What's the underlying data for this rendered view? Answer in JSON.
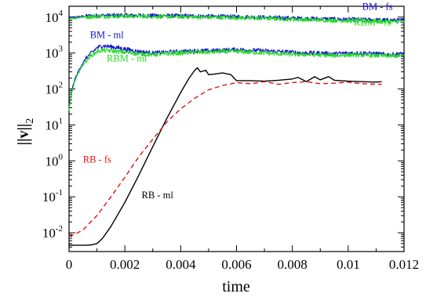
{
  "chart_data": {
    "type": "line",
    "title": "",
    "xlabel": "time",
    "ylabel": "||v||",
    "ylabel_subscript": "2",
    "xlim": [
      0,
      0.012
    ],
    "ylim": [
      0.003,
      20000
    ],
    "y_scale": "log",
    "grid": false,
    "legend": "none",
    "x_ticks": [
      {
        "value": 0,
        "label": "0"
      },
      {
        "value": 0.002,
        "label": "0.002"
      },
      {
        "value": 0.004,
        "label": "0.004"
      },
      {
        "value": 0.006,
        "label": "0.006"
      },
      {
        "value": 0.008,
        "label": "0.008"
      },
      {
        "value": 0.01,
        "label": "0.01"
      },
      {
        "value": 0.012,
        "label": "0.012"
      }
    ],
    "y_ticks": [
      {
        "exp": -2,
        "base": "10",
        "sup": "-2"
      },
      {
        "exp": -1,
        "base": "10",
        "sup": "-1"
      },
      {
        "exp": 0,
        "base": "10",
        "sup": "0"
      },
      {
        "exp": 1,
        "base": "10",
        "sup": "1"
      },
      {
        "exp": 2,
        "base": "10",
        "sup": "2"
      },
      {
        "exp": 3,
        "base": "10",
        "sup": "3"
      },
      {
        "exp": 4,
        "base": "10",
        "sup": "4"
      }
    ],
    "series": [
      {
        "name": "BM - fs",
        "color": "#1010d0",
        "dash": "solid",
        "noisy": true,
        "x": [
          0,
          0.0005,
          0.001,
          0.002,
          0.003,
          0.004,
          0.005,
          0.006,
          0.007,
          0.008,
          0.009,
          0.01,
          0.011,
          0.012
        ],
        "y": [
          9500,
          10500,
          11000,
          11200,
          11000,
          10800,
          10500,
          10200,
          9800,
          9300,
          8900,
          8600,
          8300,
          8000
        ]
      },
      {
        "name": "RBM - fs",
        "color": "#22dd22",
        "dash": "solid",
        "noisy": true,
        "x": [
          0,
          0.0005,
          0.001,
          0.002,
          0.003,
          0.004,
          0.005,
          0.006,
          0.007,
          0.008,
          0.009,
          0.01,
          0.011,
          0.012
        ],
        "y": [
          9000,
          10000,
          10500,
          10600,
          10400,
          10200,
          9900,
          9600,
          9200,
          8700,
          8300,
          7900,
          7600,
          7300
        ]
      },
      {
        "name": "BM - ml",
        "color": "#1010d0",
        "dash": "solid",
        "noisy": true,
        "x": [
          0,
          0.0001,
          0.0002,
          0.0004,
          0.0006,
          0.0008,
          0.001,
          0.0012,
          0.0015,
          0.002,
          0.0025,
          0.003,
          0.0035,
          0.004,
          0.0045,
          0.005,
          0.0055,
          0.006,
          0.0065,
          0.007,
          0.0075,
          0.008,
          0.0085,
          0.009,
          0.0095,
          0.01,
          0.0105,
          0.011,
          0.0115,
          0.012
        ],
        "y": [
          30,
          90,
          180,
          400,
          700,
          1000,
          1400,
          1600,
          1500,
          1300,
          1100,
          1000,
          1050,
          1100,
          1150,
          1150,
          1200,
          1250,
          1200,
          1150,
          1100,
          1050,
          1000,
          1000,
          950,
          1000,
          1000,
          950,
          900,
          950
        ]
      },
      {
        "name": "RBM - ml",
        "color": "#22dd22",
        "dash": "solid",
        "noisy": true,
        "x": [
          0,
          0.0001,
          0.0002,
          0.0004,
          0.0006,
          0.0008,
          0.001,
          0.0012,
          0.0015,
          0.002,
          0.0025,
          0.003,
          0.0035,
          0.004,
          0.0045,
          0.005,
          0.0055,
          0.006,
          0.0065,
          0.007,
          0.0075,
          0.008,
          0.0085,
          0.009,
          0.0095,
          0.01,
          0.0105,
          0.011,
          0.0115,
          0.012
        ],
        "y": [
          25,
          80,
          160,
          350,
          600,
          850,
          1100,
          1200,
          1150,
          1050,
          950,
          900,
          950,
          1000,
          1050,
          1050,
          1100,
          1100,
          1050,
          1000,
          950,
          920,
          900,
          880,
          850,
          880,
          880,
          850,
          820,
          850
        ]
      },
      {
        "name": "RB - ml",
        "color": "#000000",
        "dash": "solid",
        "noisy": false,
        "x": [
          0,
          0.0002,
          0.0004,
          0.0006,
          0.0008,
          0.001,
          0.0012,
          0.0015,
          0.002,
          0.0025,
          0.003,
          0.0035,
          0.004,
          0.0043,
          0.0045,
          0.0046,
          0.0047,
          0.0049,
          0.005,
          0.0052,
          0.0055,
          0.0058,
          0.006,
          0.0065,
          0.007,
          0.0075,
          0.008,
          0.0082,
          0.0085,
          0.0088,
          0.009,
          0.0093,
          0.0095,
          0.01,
          0.0105,
          0.011,
          0.0112
        ],
        "y": [
          0.0045,
          0.0045,
          0.0045,
          0.0045,
          0.0046,
          0.005,
          0.007,
          0.015,
          0.07,
          0.4,
          2.5,
          15,
          80,
          200,
          330,
          390,
          300,
          330,
          250,
          260,
          280,
          250,
          170,
          170,
          165,
          175,
          190,
          210,
          160,
          220,
          180,
          220,
          175,
          165,
          160,
          155,
          160
        ]
      },
      {
        "name": "RB - fs",
        "color": "#e01010",
        "dash": "dashed",
        "noisy": false,
        "x": [
          0,
          0.0002,
          0.0005,
          0.001,
          0.0015,
          0.002,
          0.0025,
          0.003,
          0.0035,
          0.004,
          0.0045,
          0.005,
          0.0055,
          0.006,
          0.0065,
          0.007,
          0.0075,
          0.008,
          0.0085,
          0.009,
          0.0095,
          0.01,
          0.0105,
          0.011,
          0.0112
        ],
        "y": [
          0.008,
          0.009,
          0.012,
          0.03,
          0.1,
          0.35,
          1.3,
          4,
          12,
          28,
          55,
          95,
          125,
          150,
          140,
          160,
          135,
          150,
          160,
          140,
          145,
          155,
          140,
          135,
          135
        ]
      }
    ],
    "annotations": [
      {
        "text": "BM - fs",
        "color": "#1010d0",
        "x": 0.0105,
        "y": 16000
      },
      {
        "text": "RBM - fs",
        "color": "#22dd22",
        "x": 0.0102,
        "y": 5800
      },
      {
        "text": "BM - ml",
        "color": "#1010d0",
        "x": 0.00075,
        "y": 2600
      },
      {
        "text": "RBM - ml",
        "color": "#22dd22",
        "x": 0.00135,
        "y": 580
      },
      {
        "text": "RB - fs",
        "color": "#e01010",
        "x": 0.0005,
        "y": 0.9
      },
      {
        "text": "RB - ml",
        "color": "#000000",
        "x": 0.0026,
        "y": 0.09
      }
    ]
  }
}
